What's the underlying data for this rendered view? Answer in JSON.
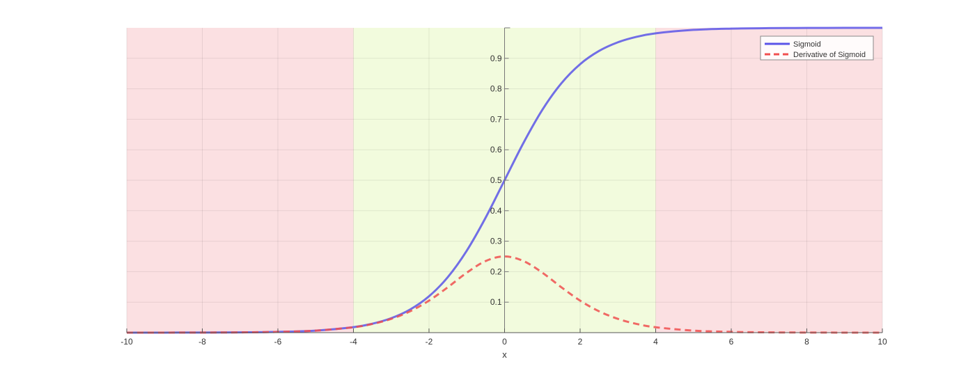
{
  "chart_data": {
    "type": "line",
    "title": "",
    "xlabel": "x",
    "ylabel": "",
    "xlim": [
      -10,
      10
    ],
    "ylim": [
      0,
      1
    ],
    "x_ticks": [
      -10,
      -8,
      -6,
      -4,
      -2,
      0,
      2,
      4,
      6,
      8,
      10
    ],
    "y_ticks": [
      0.1,
      0.2,
      0.3,
      0.4,
      0.5,
      0.6,
      0.7,
      0.8,
      0.9
    ],
    "x_tick_labels": [
      "-10",
      "-8",
      "-6",
      "-4",
      "-2",
      "0",
      "2",
      "4",
      "6",
      "8",
      "10"
    ],
    "y_tick_labels": [
      "0.1",
      "0.2",
      "0.3",
      "0.4",
      "0.5",
      "0.6",
      "0.7",
      "0.8",
      "0.9"
    ],
    "grid": true,
    "legend_position": "top-right",
    "regions": [
      {
        "from": -10,
        "to": -4,
        "color": "#f9d6d8"
      },
      {
        "from": -4,
        "to": 4,
        "color": "#eefad2"
      },
      {
        "from": 4,
        "to": 10,
        "color": "#f9d6d8"
      }
    ],
    "series": [
      {
        "name": "Sigmoid",
        "style": "solid",
        "color": "#5a55e8",
        "x": [
          -10,
          -9,
          -8,
          -7,
          -6,
          -5,
          -4,
          -3.5,
          -3,
          -2.5,
          -2,
          -1.5,
          -1,
          -0.5,
          0,
          0.5,
          1,
          1.5,
          2,
          2.5,
          3,
          3.5,
          4,
          5,
          6,
          7,
          8,
          9,
          10
        ],
        "y": [
          5e-05,
          0.00012,
          0.00034,
          0.00091,
          0.00247,
          0.00669,
          0.01799,
          0.02931,
          0.04743,
          0.07586,
          0.1192,
          0.18243,
          0.26894,
          0.37754,
          0.5,
          0.62246,
          0.73106,
          0.81757,
          0.8808,
          0.92414,
          0.95257,
          0.97069,
          0.98201,
          0.99331,
          0.99753,
          0.99909,
          0.99966,
          0.99988,
          0.99995
        ]
      },
      {
        "name": "Derivative of Sigmoid",
        "style": "dashed",
        "color": "#f04f4f",
        "x": [
          -10,
          -9,
          -8,
          -7,
          -6,
          -5,
          -4,
          -3.5,
          -3,
          -2.5,
          -2,
          -1.5,
          -1,
          -0.5,
          0,
          0.5,
          1,
          1.5,
          2,
          2.5,
          3,
          3.5,
          4,
          5,
          6,
          7,
          8,
          9,
          10
        ],
        "y": [
          5e-05,
          0.00012,
          0.00034,
          0.00091,
          0.00247,
          0.00665,
          0.01766,
          0.02845,
          0.04518,
          0.07011,
          0.10499,
          0.14915,
          0.19661,
          0.235,
          0.25,
          0.235,
          0.19661,
          0.14915,
          0.10499,
          0.07011,
          0.04518,
          0.02845,
          0.01766,
          0.00665,
          0.00247,
          0.00091,
          0.00034,
          0.00012,
          5e-05
        ]
      }
    ]
  }
}
